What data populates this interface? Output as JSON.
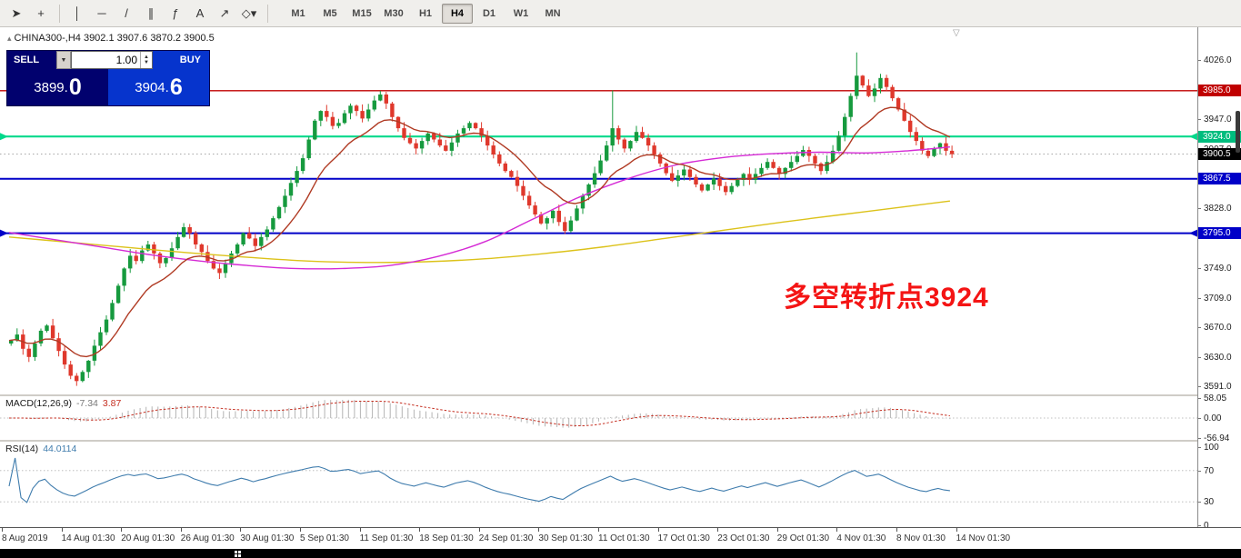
{
  "toolbar": {
    "tools": [
      {
        "name": "cursor",
        "glyph": "➤"
      },
      {
        "name": "crosshair",
        "glyph": "+"
      },
      {
        "sep": true
      },
      {
        "name": "vertical-line",
        "glyph": "│"
      },
      {
        "name": "horizontal-line",
        "glyph": "─"
      },
      {
        "name": "trendline",
        "glyph": "/"
      },
      {
        "name": "equidistant-channel",
        "glyph": "∥"
      },
      {
        "name": "fibonacci",
        "glyph": "ƒ"
      },
      {
        "name": "text",
        "glyph": "A"
      },
      {
        "name": "arrow",
        "glyph": "↗"
      },
      {
        "name": "shapes",
        "glyph": "◇▾"
      },
      {
        "sep": true
      }
    ],
    "timeframes": [
      "M1",
      "M5",
      "M15",
      "M30",
      "H1",
      "H4",
      "D1",
      "W1",
      "MN"
    ],
    "active_timeframe": "H4"
  },
  "header": {
    "marker": "▴",
    "text": "CHINA300-,H4  3902.1 3907.6 3870.2 3900.5"
  },
  "trade_panel": {
    "sell_label": "SELL",
    "buy_label": "BUY",
    "volume": "1.00",
    "sell_price_base": "3899.",
    "sell_price_last": "0",
    "buy_price_base": "3904.",
    "buy_price_last": "6"
  },
  "annotation": {
    "text": "多空转折点3924"
  },
  "colors": {
    "up": "#169a3e",
    "down": "#df382c",
    "ma_fast": "#b03a23",
    "ma_mid": "#d52ad5",
    "ma_slow": "#dcc21a",
    "macd_hist": "#b4b4b4",
    "macd_signal": "#c52f21",
    "rsi_line": "#3f7cad",
    "annotation": "#f41414",
    "level_red": "#c00000",
    "level_green": "#00d98b",
    "level_blue": "#0000c8",
    "sell_bg": "#01016e",
    "buy_bg": "#0634cd"
  },
  "price_axis": {
    "ticks": [
      {
        "label": "4026.0",
        "price": 4026.0
      },
      {
        "label": "3947.0",
        "price": 3947.0
      },
      {
        "label": "3907.0",
        "price": 3907.0
      },
      {
        "label": "3828.0",
        "price": 3828.0
      },
      {
        "label": "3749.0",
        "price": 3749.0
      },
      {
        "label": "3709.0",
        "price": 3709.0
      },
      {
        "label": "3670.0",
        "price": 3670.0
      },
      {
        "label": "3630.0",
        "price": 3630.0
      },
      {
        "label": "3591.0",
        "price": 3591.0
      }
    ],
    "chips": [
      {
        "label": "3985.0",
        "price": 3985.0,
        "bg": "#c00000"
      },
      {
        "label": "3924.0",
        "price": 3924.0,
        "bg": "#00bd7e"
      },
      {
        "label": "3900.5",
        "price": 3900.5,
        "bg": "#000000"
      },
      {
        "label": "3867.5",
        "price": 3867.5,
        "bg": "#0000c8"
      },
      {
        "label": "3795.0",
        "price": 3795.0,
        "bg": "#0000c8"
      }
    ]
  },
  "macd": {
    "label": "MACD(12,26,9)",
    "main_value": "-7.34",
    "signal_value": "3.87",
    "axis_labels": [
      {
        "label": "58.05",
        "value": 58.05
      },
      {
        "label": "0.00",
        "value": 0
      },
      {
        "label": "-56.94",
        "value": -56.94
      }
    ]
  },
  "rsi": {
    "label": "RSI(14)",
    "value": "44.0114",
    "axis_labels": [
      {
        "label": "100",
        "value": 100
      },
      {
        "label": "70",
        "value": 70
      },
      {
        "label": "30",
        "value": 30
      },
      {
        "label": "0",
        "value": 0
      }
    ],
    "guide_levels": [
      70,
      30
    ]
  },
  "date_axis": {
    "labels": [
      "8 Aug 2019",
      "14 Aug 01:30",
      "20 Aug 01:30",
      "26 Aug 01:30",
      "30 Aug 01:30",
      "5 Sep 01:30",
      "11 Sep 01:30",
      "18 Sep 01:30",
      "24 Sep 01:30",
      "30 Sep 01:30",
      "11 Oct 01:30",
      "17 Oct 01:30",
      "23 Oct 01:30",
      "29 Oct 01:30",
      "4 Nov 01:30",
      "8 Nov 01:30",
      "14 Nov 01:30"
    ]
  },
  "chart_data": {
    "type": "candlestick",
    "symbol": "CHINA300-",
    "timeframe": "H4",
    "ohlc_header": {
      "open": 3902.1,
      "high": 3907.6,
      "low": 3870.2,
      "close": 3900.5
    },
    "price_range_visible": [
      3591.0,
      4026.0
    ],
    "indicators": {
      "macd_periods": [
        12,
        26,
        9
      ],
      "rsi_period": 14
    },
    "current_price": {
      "value": 3900.5
    },
    "levels": [
      {
        "price": 3985.0,
        "color_key": "level_red",
        "width": 1.4,
        "arrows": false
      },
      {
        "price": 3924.0,
        "color_key": "level_green",
        "width": 2.2,
        "arrows": true
      },
      {
        "price": 3867.5,
        "color_key": "level_blue",
        "width": 2.0,
        "arrows": false
      },
      {
        "price": 3795.0,
        "color_key": "level_blue",
        "width": 2.0,
        "arrows": true
      }
    ],
    "first_open": 3648,
    "closes": [
      3652,
      3660,
      3641,
      3630,
      3648,
      3665,
      3672,
      3655,
      3638,
      3620,
      3605,
      3598,
      3610,
      3625,
      3645,
      3663,
      3680,
      3702,
      3725,
      3748,
      3765,
      3758,
      3772,
      3780,
      3768,
      3755,
      3762,
      3775,
      3790,
      3803,
      3795,
      3780,
      3770,
      3758,
      3748,
      3742,
      3755,
      3768,
      3780,
      3795,
      3788,
      3778,
      3790,
      3800,
      3815,
      3830,
      3845,
      3862,
      3878,
      3895,
      3920,
      3945,
      3958,
      3950,
      3938,
      3942,
      3955,
      3965,
      3958,
      3948,
      3960,
      3972,
      3980,
      3968,
      3950,
      3935,
      3922,
      3915,
      3908,
      3918,
      3928,
      3920,
      3912,
      3905,
      3916,
      3928,
      3935,
      3942,
      3935,
      3925,
      3912,
      3900,
      3888,
      3878,
      3870,
      3858,
      3845,
      3832,
      3820,
      3808,
      3815,
      3825,
      3810,
      3798,
      3812,
      3828,
      3845,
      3860,
      3875,
      3892,
      3912,
      3935,
      3920,
      3908,
      3918,
      3930,
      3922,
      3912,
      3900,
      3888,
      3875,
      3865,
      3872,
      3880,
      3870,
      3860,
      3852,
      3860,
      3868,
      3858,
      3850,
      3858,
      3866,
      3874,
      3866,
      3874,
      3882,
      3890,
      3882,
      3874,
      3882,
      3890,
      3898,
      3906,
      3898,
      3888,
      3878,
      3890,
      3905,
      3925,
      3950,
      3978,
      4005,
      3992,
      3978,
      3988,
      4002,
      3990,
      3975,
      3960,
      3945,
      3930,
      3918,
      3905,
      3898,
      3908,
      3915,
      3905,
      3900.5
    ],
    "wick_overrides": {
      "11": {
        "low": 3591.5
      },
      "101": {
        "high": 3985.5
      },
      "142": {
        "high": 4036
      }
    },
    "ma_fast_period": 13,
    "ma_mid_anchors": [
      [
        0,
        3796
      ],
      [
        8,
        3786
      ],
      [
        16,
        3776
      ],
      [
        24,
        3766
      ],
      [
        32,
        3758
      ],
      [
        40,
        3752
      ],
      [
        48,
        3748
      ],
      [
        56,
        3748
      ],
      [
        64,
        3752
      ],
      [
        72,
        3764
      ],
      [
        80,
        3784
      ],
      [
        88,
        3814
      ],
      [
        96,
        3844
      ],
      [
        104,
        3868
      ],
      [
        112,
        3886
      ],
      [
        120,
        3896
      ],
      [
        128,
        3901
      ],
      [
        136,
        3903
      ],
      [
        144,
        3902
      ],
      [
        151,
        3905
      ],
      [
        158,
        3910
      ]
    ],
    "ma_slow_anchors": [
      [
        0,
        3790
      ],
      [
        10,
        3783
      ],
      [
        20,
        3776
      ],
      [
        30,
        3769
      ],
      [
        40,
        3763
      ],
      [
        50,
        3758
      ],
      [
        60,
        3756
      ],
      [
        70,
        3757
      ],
      [
        80,
        3761
      ],
      [
        90,
        3768
      ],
      [
        100,
        3777
      ],
      [
        110,
        3788
      ],
      [
        120,
        3799
      ],
      [
        130,
        3810
      ],
      [
        140,
        3820
      ],
      [
        150,
        3830
      ],
      [
        158,
        3838
      ]
    ]
  }
}
